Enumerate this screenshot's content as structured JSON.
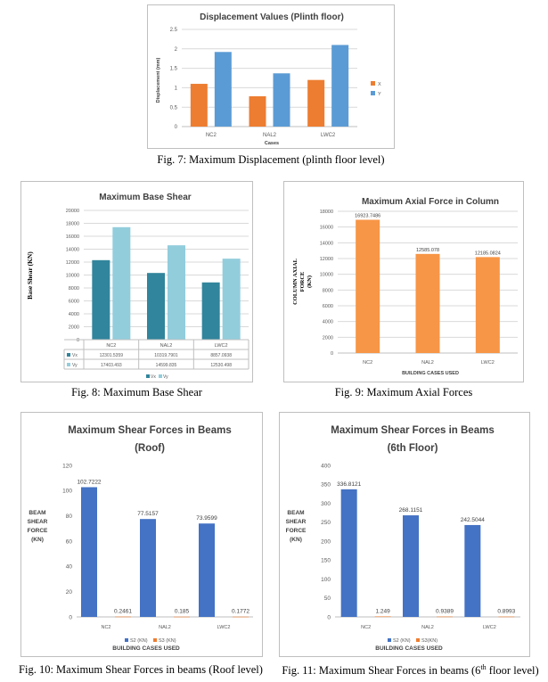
{
  "captions": {
    "fig7": "Fig. 7: Maximum Displacement (plinth floor level)",
    "fig8": "Fig. 8: Maximum Base Shear",
    "fig9": "Fig. 9: Maximum Axial Forces",
    "fig10": "Fig. 10: Maximum Shear Forces in beams (Roof level)",
    "fig11_pre": "Fig. 11: Maximum Shear Forces in beams (6",
    "fig11_sup": "th",
    "fig11_post": " floor level)"
  },
  "colors": {
    "orange": "#ED7D31",
    "blue": "#5B9BD5",
    "teal": "#31859C",
    "lightblue": "#92CDDC",
    "axial": "#F79646",
    "beamblue": "#4472C4"
  },
  "chart_data": [
    {
      "id": "disp",
      "type": "bar",
      "title": "Displacement Values (Plinth floor)",
      "xlabel": "Cases",
      "ylabel": "Displacement (mm)",
      "categories": [
        "NC2",
        "NAL2",
        "LWC2"
      ],
      "series": [
        {
          "name": "X",
          "values": [
            1.1,
            0.78,
            1.2
          ]
        },
        {
          "name": "Y",
          "values": [
            1.92,
            1.37,
            2.1
          ]
        }
      ],
      "ylim": [
        0,
        2.5
      ],
      "yticks": [
        "0",
        "0.5",
        "1",
        "1.5",
        "2",
        "2.5"
      ],
      "legend": "right",
      "grid": true
    },
    {
      "id": "base",
      "type": "bar",
      "title": "Maximum Base Shear",
      "ylabel": "Base Shear (KN)",
      "categories": [
        "NC2",
        "NAL2",
        "LWC2"
      ],
      "series": [
        {
          "name": "Vx",
          "values": [
            12301.5359,
            10319.7901,
            8857.0938
          ],
          "labels": [
            "12301.5359",
            "10319.7901",
            "8857.0938"
          ]
        },
        {
          "name": "Vy",
          "values": [
            17403.493,
            14599.835,
            12530.498
          ],
          "labels": [
            "17403.493",
            "14599.835",
            "12530.498"
          ]
        }
      ],
      "ylim": [
        0,
        20000
      ],
      "yticks": [
        "0",
        "2000",
        "4000",
        "6000",
        "8000",
        "10000",
        "12000",
        "14000",
        "16000",
        "18000",
        "20000"
      ],
      "legend": "bottom",
      "grid": true,
      "data_table": true
    },
    {
      "id": "axial",
      "type": "bar",
      "title": "Maximum Axial Force in Column",
      "xlabel": "BUILDING CASES USED",
      "ylabel": "COLUMN AXIAL FORCE (KN)",
      "categories": [
        "NC2",
        "NAL2",
        "LWC2"
      ],
      "series": [
        {
          "name": "",
          "values": [
            16923.7486,
            12585.078,
            12185.0824
          ],
          "labels": [
            "16923.7486",
            "12585.078",
            "12185.0824"
          ]
        }
      ],
      "ylim": [
        0,
        18000
      ],
      "yticks": [
        "0",
        "2000",
        "4000",
        "6000",
        "8000",
        "10000",
        "12000",
        "14000",
        "16000",
        "18000"
      ],
      "grid": true
    },
    {
      "id": "roof",
      "type": "bar",
      "title": "Maximum Shear Forces in Beams (Roof)",
      "title_lines": [
        "Maximum Shear Forces in Beams",
        "(Roof)"
      ],
      "xlabel": "BUILDING CASES USED",
      "ylabel": "BEAM SHEAR FORCE (KN)",
      "ylabel_lines": [
        "BEAM",
        "SHEAR",
        "FORCE",
        "(KN)"
      ],
      "categories": [
        "NC2",
        "NAL2",
        "LWC2"
      ],
      "series": [
        {
          "name": "S2 (KN)",
          "values": [
            102.7222,
            77.5157,
            73.9599
          ],
          "labels": [
            "102.7222",
            "77.5157",
            "73.9599"
          ]
        },
        {
          "name": "S3 (KN)",
          "values": [
            0.2461,
            0.185,
            0.1772
          ],
          "labels": [
            "0.2461",
            "0.185",
            "0.1772"
          ]
        }
      ],
      "ylim": [
        0,
        120
      ],
      "yticks": [
        "0",
        "20",
        "40",
        "60",
        "80",
        "100",
        "120"
      ],
      "legend": "bottom",
      "grid": false
    },
    {
      "id": "sixth",
      "type": "bar",
      "title": "Maximum Shear Forces in Beams (6th Floor)",
      "title_lines": [
        "Maximum Shear Forces in Beams",
        "(6th Floor)"
      ],
      "xlabel": "BUILDING CASES USED",
      "ylabel": "BEAM SHEAR FORCE (KN)",
      "ylabel_lines": [
        "BEAM",
        "SHEAR",
        "FORCE",
        "(KN)"
      ],
      "categories": [
        "NC2",
        "NAL2",
        "LWC2"
      ],
      "series": [
        {
          "name": "S2 (KN)",
          "values": [
            336.8121,
            268.1151,
            242.5044
          ],
          "labels": [
            "336.8121",
            "268.1151",
            "242.5044"
          ]
        },
        {
          "name": "S3(KN)",
          "values": [
            1.249,
            0.9389,
            0.8993
          ],
          "labels": [
            "1.249",
            "0.9389",
            "0.8993"
          ]
        }
      ],
      "ylim": [
        0,
        400
      ],
      "yticks": [
        "0",
        "50",
        "100",
        "150",
        "200",
        "250",
        "300",
        "350",
        "400"
      ],
      "legend": "bottom",
      "grid": false
    }
  ]
}
